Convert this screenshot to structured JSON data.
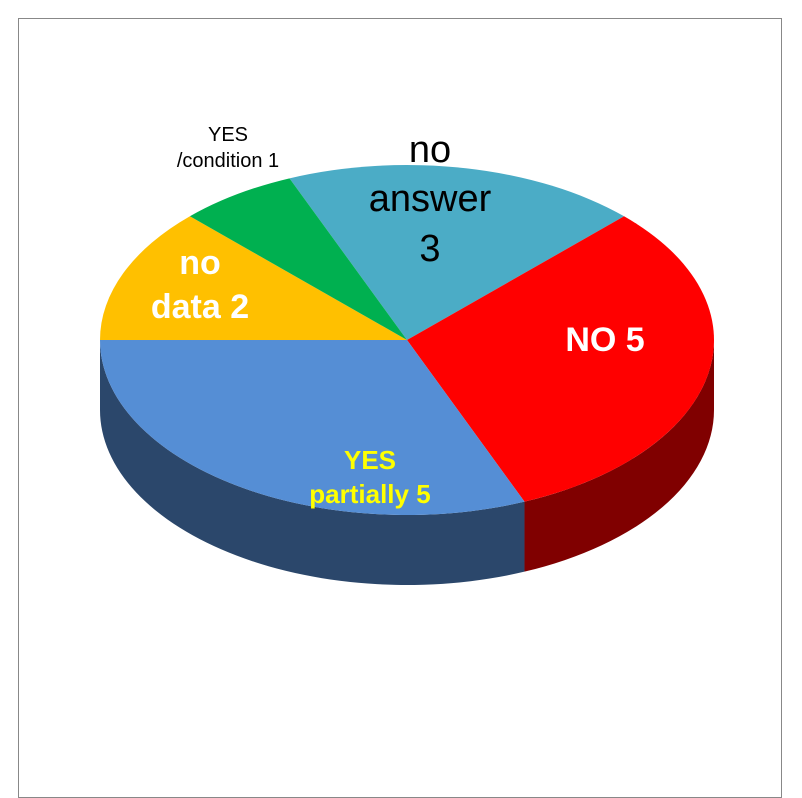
{
  "chart_data": {
    "type": "pie3d",
    "categories": [
      "no answer",
      "NO",
      "YES partially",
      "no data",
      "YES /condition"
    ],
    "values": [
      3,
      5,
      5,
      2,
      1
    ],
    "colors": [
      "#4bacc6",
      "#ff0000",
      "#558ed5",
      "#ffc000",
      "#00b050"
    ],
    "label_colors": [
      "#000000",
      "#ffffff",
      "#ffff00",
      "#ffffff",
      "#000000"
    ]
  }
}
